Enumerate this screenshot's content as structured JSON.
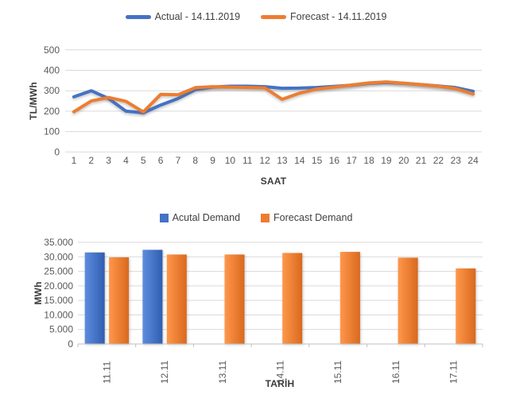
{
  "chart_data": [
    {
      "type": "line",
      "title": "",
      "xlabel": "SAAT",
      "ylabel": "TL/MWh",
      "x": [
        1,
        2,
        3,
        4,
        5,
        6,
        7,
        8,
        9,
        10,
        11,
        12,
        13,
        14,
        15,
        16,
        17,
        18,
        19,
        20,
        21,
        22,
        23,
        24
      ],
      "ylim": [
        0,
        500
      ],
      "yticks": [
        0,
        100,
        200,
        300,
        400,
        500
      ],
      "ytick_labels": [
        "0",
        "100",
        "200",
        "300",
        "400",
        "500"
      ],
      "grid": true,
      "legend_position": "top-center",
      "series": [
        {
          "name": "Actual - 14.11.2019",
          "color": "#4472C4",
          "values": [
            270,
            300,
            262,
            200,
            192,
            230,
            262,
            305,
            318,
            322,
            322,
            320,
            312,
            313,
            316,
            321,
            327,
            336,
            340,
            336,
            330,
            323,
            315,
            297
          ]
        },
        {
          "name": "Forecast - 14.11.2019",
          "color": "#ED7D31",
          "values": [
            197,
            250,
            267,
            248,
            196,
            282,
            280,
            315,
            320,
            318,
            316,
            314,
            258,
            288,
            308,
            318,
            328,
            338,
            343,
            337,
            330,
            322,
            310,
            284
          ]
        }
      ]
    },
    {
      "type": "bar",
      "title": "",
      "xlabel": "TARİH",
      "ylabel": "MWh",
      "categories": [
        "11.11",
        "12.11",
        "13.11",
        "14.11",
        "15.11",
        "16.11",
        "17.11"
      ],
      "ylim": [
        0,
        35000
      ],
      "yticks": [
        0,
        5000,
        10000,
        15000,
        20000,
        25000,
        30000,
        35000
      ],
      "ytick_labels": [
        "0",
        "5.000",
        "10.000",
        "15.000",
        "20.000",
        "25.000",
        "30.000",
        "35.000"
      ],
      "grid": true,
      "legend_position": "top-center",
      "series": [
        {
          "name": "Acutal Demand",
          "color": "#4472C4",
          "values": [
            31500,
            32400,
            null,
            null,
            null,
            null,
            null
          ]
        },
        {
          "name": "Forecast Demand",
          "color": "#ED7D31",
          "values": [
            29800,
            30800,
            30800,
            31300,
            31700,
            29700,
            26000
          ]
        }
      ]
    }
  ]
}
